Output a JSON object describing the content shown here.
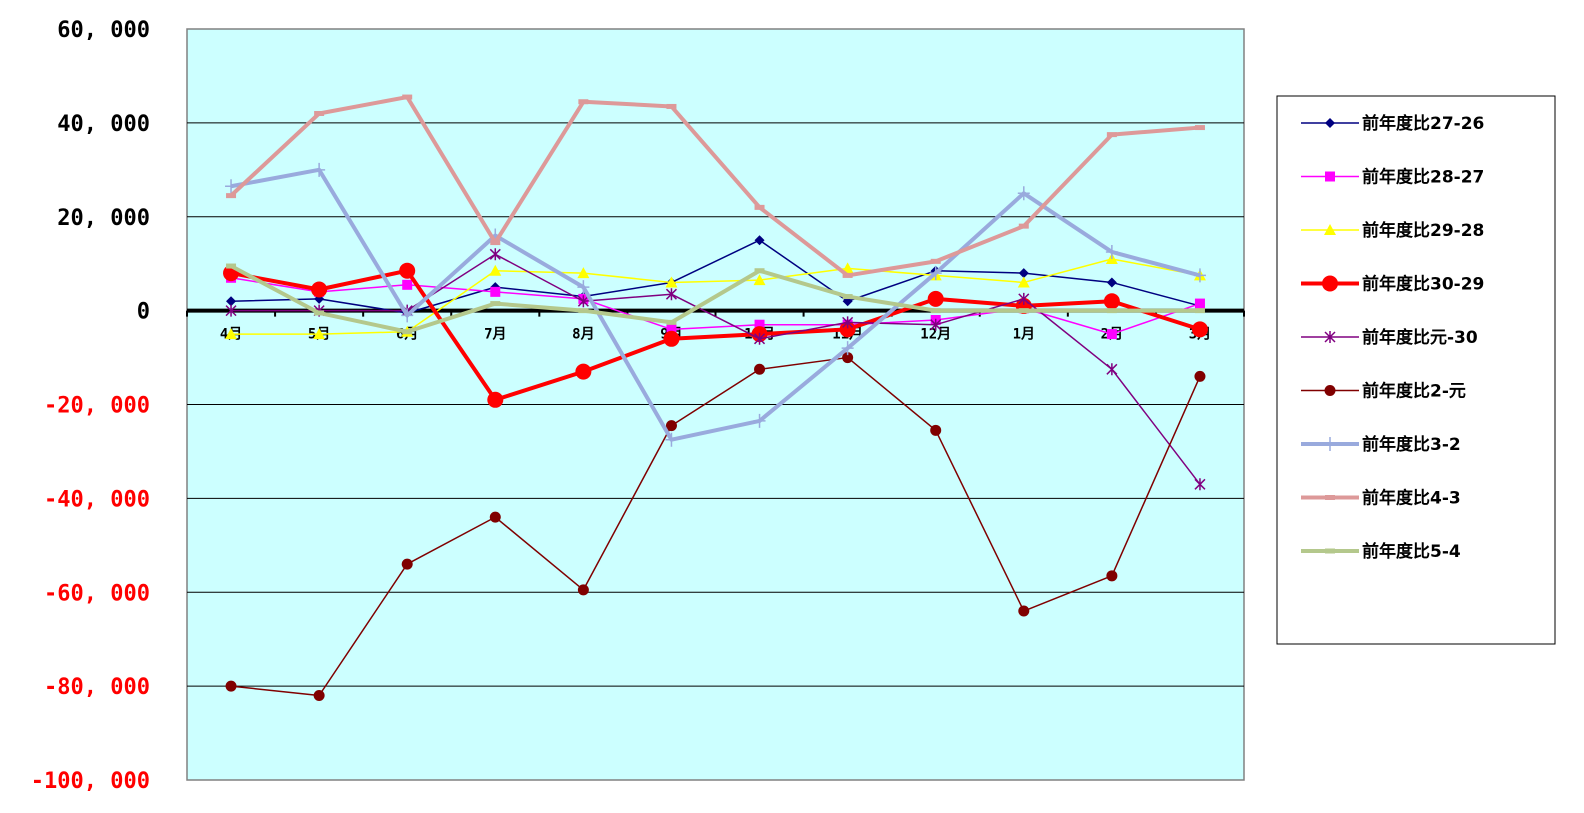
{
  "chart_data": {
    "type": "line",
    "categories": [
      "4月",
      "5月",
      "6月",
      "7月",
      "8月",
      "9月",
      "10月",
      "11月",
      "12月",
      "1月",
      "2月",
      "3月"
    ],
    "ylim": [
      -100000,
      60000
    ],
    "yticks": [
      60000,
      40000,
      20000,
      0,
      -20000,
      -40000,
      -60000,
      -80000,
      -100000
    ],
    "ytick_labels": [
      "60, 000",
      "40, 000",
      "20, 000",
      "0",
      "-20, 000",
      "-40, 000",
      "-60, 000",
      "-80, 000",
      "-100, 000"
    ],
    "positive_tick_color": "#000000",
    "negative_tick_color": "#ff0000",
    "plot_background": "#ccffff",
    "grid": true,
    "legend_position": "right",
    "series": [
      {
        "name": "前年度比27-26",
        "color": "#000080",
        "width": 1.5,
        "marker": "diamond",
        "values": [
          2000,
          2500,
          -500,
          5000,
          3000,
          6000,
          15000,
          2000,
          8500,
          8000,
          6000,
          1000
        ]
      },
      {
        "name": "前年度比28-27",
        "color": "#ff00ff",
        "width": 1.5,
        "marker": "square",
        "values": [
          7000,
          4000,
          5500,
          4000,
          2500,
          -4000,
          -3000,
          -3000,
          -2000,
          500,
          -5000,
          1500
        ]
      },
      {
        "name": "前年度比29-28",
        "color": "#ffff00",
        "width": 1.5,
        "marker": "triangle",
        "values": [
          -5000,
          -5000,
          -4500,
          8500,
          8000,
          6000,
          6500,
          9000,
          7500,
          6000,
          11000,
          7500
        ]
      },
      {
        "name": "前年度比30-29",
        "color": "#ff0000",
        "width": 4,
        "marker": "circle",
        "values": [
          8000,
          4500,
          8500,
          -19000,
          -13000,
          -6000,
          -5000,
          -4000,
          2500,
          1000,
          2000,
          -4000
        ]
      },
      {
        "name": "前年度比元-30",
        "color": "#800080",
        "width": 1.5,
        "marker": "star",
        "values": [
          0,
          0,
          0,
          12000,
          2000,
          3500,
          -6000,
          -2500,
          -3000,
          2500,
          -12500,
          -37000
        ]
      },
      {
        "name": "前年度比2-元",
        "color": "#800000",
        "width": 1.5,
        "marker": "circle-small",
        "values": [
          -80000,
          -82000,
          -54000,
          -44000,
          -59500,
          -24500,
          -12500,
          -10000,
          -25500,
          -64000,
          -56500,
          -14000
        ]
      },
      {
        "name": "前年度比3-2",
        "color": "#99aadd",
        "width": 4,
        "marker": "plus",
        "values": [
          26500,
          30000,
          -1000,
          16000,
          5000,
          -27500,
          -23500,
          -8000,
          8000,
          25000,
          12500,
          7500
        ]
      },
      {
        "name": "前年度比4-3",
        "color": "#dd9999",
        "width": 4,
        "marker": "dash",
        "values": [
          24500,
          42000,
          45500,
          14500,
          44500,
          43500,
          22000,
          7500,
          10500,
          18000,
          37500,
          39000
        ]
      },
      {
        "name": "前年度比5-4",
        "color": "#b4c88c",
        "width": 4,
        "marker": "dash",
        "values": [
          9500,
          -500,
          -4500,
          1500,
          0,
          -2500,
          8500,
          3000,
          0,
          0,
          0,
          0
        ]
      }
    ]
  }
}
